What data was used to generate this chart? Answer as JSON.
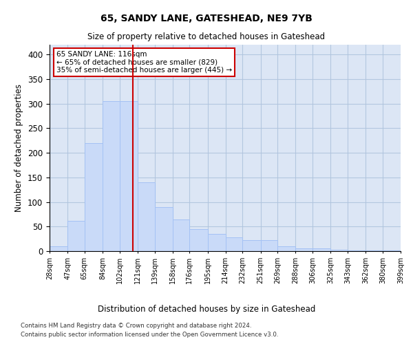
{
  "title": "65, SANDY LANE, GATESHEAD, NE9 7YB",
  "subtitle": "Size of property relative to detached houses in Gateshead",
  "xlabel": "Distribution of detached houses by size in Gateshead",
  "ylabel": "Number of detached properties",
  "bar_color": "#c9daf8",
  "bar_edge_color": "#a4c2f4",
  "grid_color": "#b0c4de",
  "background_color": "#dce6f5",
  "property_line_x": 116,
  "property_line_color": "#cc0000",
  "annotation_text_line1": "65 SANDY LANE: 116sqm",
  "annotation_text_line2": "← 65% of detached houses are smaller (829)",
  "annotation_text_line3": "35% of semi-detached houses are larger (445) →",
  "categories": [
    "28sqm",
    "47sqm",
    "65sqm",
    "84sqm",
    "102sqm",
    "121sqm",
    "139sqm",
    "158sqm",
    "176sqm",
    "195sqm",
    "214sqm",
    "232sqm",
    "251sqm",
    "269sqm",
    "288sqm",
    "306sqm",
    "325sqm",
    "343sqm",
    "362sqm",
    "380sqm",
    "399sqm"
  ],
  "values": [
    10,
    62,
    220,
    305,
    305,
    140,
    90,
    65,
    45,
    35,
    28,
    22,
    22,
    10,
    5,
    5,
    3,
    2,
    2,
    2
  ],
  "ylim": [
    0,
    420
  ],
  "footer_line1": "Contains HM Land Registry data © Crown copyright and database right 2024.",
  "footer_line2": "Contains public sector information licensed under the Open Government Licence v3.0."
}
